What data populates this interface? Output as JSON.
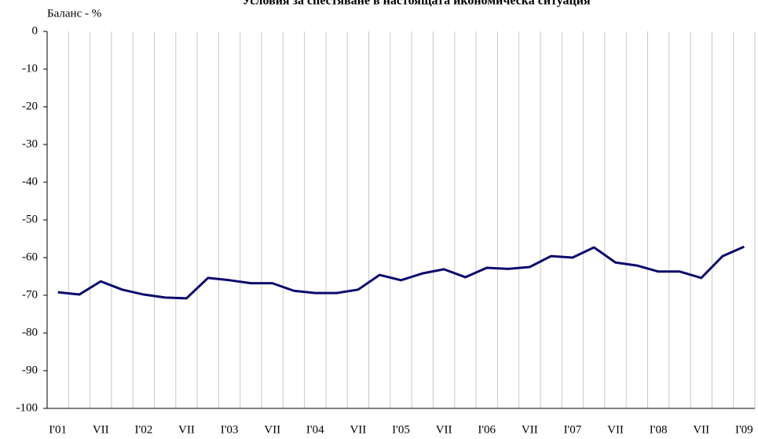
{
  "chart_data": {
    "type": "line",
    "title": "Условия за спестяване в настоящата икономическа ситуация",
    "ylabel": "Баланс - %",
    "categories": [
      "I'01",
      null,
      "VII",
      null,
      "I'02",
      null,
      "VII",
      null,
      "I'03",
      null,
      "VII",
      null,
      "I'04",
      null,
      "VII",
      null,
      "I'05",
      null,
      "VII",
      null,
      "I'06",
      null,
      "VII",
      null,
      "I'07",
      null,
      "VII",
      null,
      "I'08",
      null,
      "VII",
      null,
      "I'09"
    ],
    "values": [
      -69.2,
      -69.8,
      -66.3,
      -68.5,
      -69.8,
      -70.6,
      -70.8,
      -65.4,
      -66,
      -66.8,
      -66.8,
      -68.8,
      -69.4,
      -69.4,
      -68.5,
      -64.6,
      -66,
      -64.2,
      -63.1,
      -65.2,
      -62.7,
      -63,
      -62.5,
      -59.6,
      -60,
      -57.3,
      -61.3,
      -62.1,
      -63.7,
      -63.7,
      -65.4,
      -59.6,
      -57.1
    ],
    "color": "#0a0a6e",
    "ylim": [
      -100,
      0
    ],
    "yticks": [
      0,
      -10,
      -20,
      -30,
      -40,
      -50,
      -60,
      -70,
      -80,
      -90,
      -100
    ],
    "grid": true
  }
}
